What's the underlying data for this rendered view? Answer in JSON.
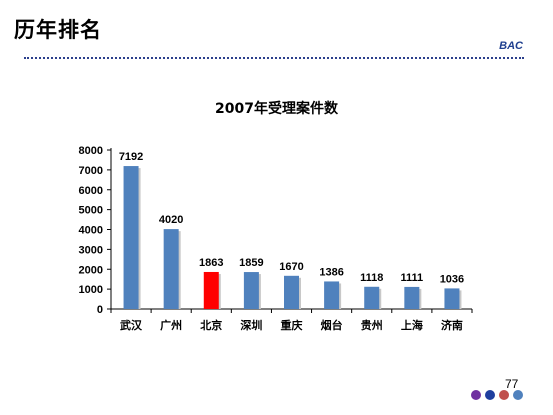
{
  "slide": {
    "title": "历年排名",
    "brand": "BAC",
    "page_number": "77"
  },
  "chart_data": {
    "type": "bar",
    "title": "2007年受理案件数",
    "xlabel": "",
    "ylabel": "",
    "categories": [
      "武汉",
      "广州",
      "北京",
      "深圳",
      "重庆",
      "烟台",
      "贵州",
      "上海",
      "济南"
    ],
    "values": [
      7192,
      4020,
      1863,
      1859,
      1670,
      1386,
      1118,
      1111,
      1036
    ],
    "ylim": [
      0,
      8000
    ],
    "yticks": [
      0,
      1000,
      2000,
      3000,
      4000,
      5000,
      6000,
      7000,
      8000
    ],
    "grid": false,
    "legend": "none",
    "bar_color": "#4f81bd",
    "highlight_index": 2,
    "highlight_color": "#ff0000"
  },
  "decor": {
    "dot_colors": [
      "#7030a0",
      "#1f3f9f",
      "#c0504d",
      "#4f81bd"
    ]
  }
}
